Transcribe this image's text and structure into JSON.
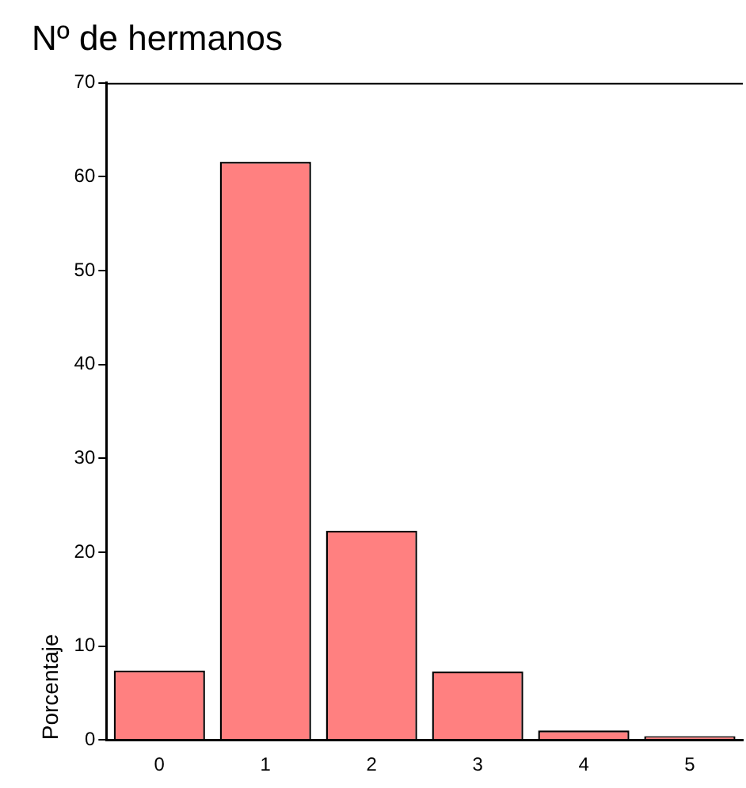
{
  "chart_data": {
    "type": "bar",
    "title": "Nº de hermanos",
    "ylabel": "Porcentaje",
    "categories": [
      "0",
      "1",
      "2",
      "3",
      "4",
      "5"
    ],
    "values": [
      7.4,
      61.6,
      22.3,
      7.3,
      1.0,
      0.4
    ],
    "color": "#ff8080",
    "ylim": [
      0,
      70
    ],
    "yticks": [
      0,
      10,
      20,
      30,
      40,
      50,
      60,
      70
    ],
    "grid": false,
    "legend": false
  }
}
